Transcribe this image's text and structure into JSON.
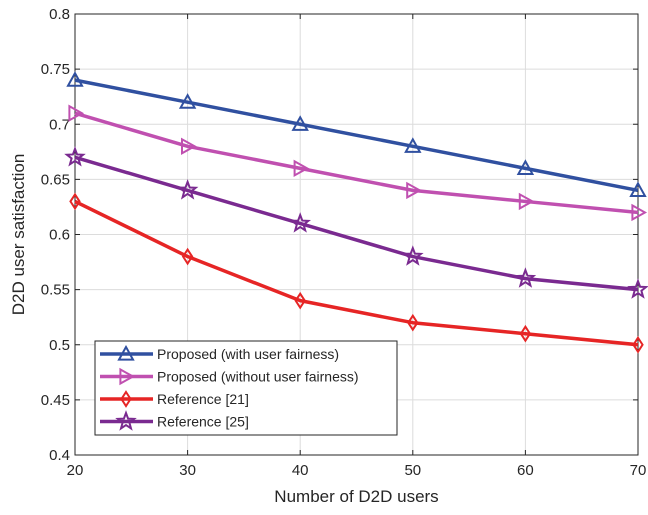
{
  "chart_data": {
    "type": "line",
    "title": "",
    "xlabel": "Number of D2D users",
    "ylabel": "D2D user satisfaction",
    "x": [
      20,
      30,
      40,
      50,
      60,
      70
    ],
    "xlim": [
      20,
      70
    ],
    "ylim": [
      0.4,
      0.8
    ],
    "xticks": [
      20,
      30,
      40,
      50,
      60,
      70
    ],
    "yticks": [
      0.4,
      0.45,
      0.5,
      0.55,
      0.6,
      0.65,
      0.7,
      0.75,
      0.8
    ],
    "xtick_labels": [
      "20",
      "30",
      "40",
      "50",
      "60",
      "70"
    ],
    "ytick_labels": [
      "0.4",
      "0.45",
      "0.5",
      "0.55",
      "0.6",
      "0.65",
      "0.7",
      "0.75",
      "0.8"
    ],
    "grid": true,
    "legend_position": "bottom-left",
    "series": [
      {
        "name": "Proposed (with user fairness)",
        "color": "#3050a0",
        "marker": "triangle-up",
        "values": [
          0.74,
          0.72,
          0.7,
          0.68,
          0.66,
          0.64
        ]
      },
      {
        "name": "Proposed (without user fairness)",
        "color": "#c050b0",
        "marker": "triangle-right",
        "values": [
          0.71,
          0.68,
          0.66,
          0.64,
          0.63,
          0.62
        ]
      },
      {
        "name": "Reference [21]",
        "color": "#e62525",
        "marker": "diamond",
        "values": [
          0.63,
          0.58,
          0.54,
          0.52,
          0.51,
          0.5
        ]
      },
      {
        "name": "Reference [25]",
        "color": "#7a2a90",
        "marker": "star",
        "values": [
          0.67,
          0.64,
          0.61,
          0.58,
          0.56,
          0.55
        ]
      }
    ]
  }
}
